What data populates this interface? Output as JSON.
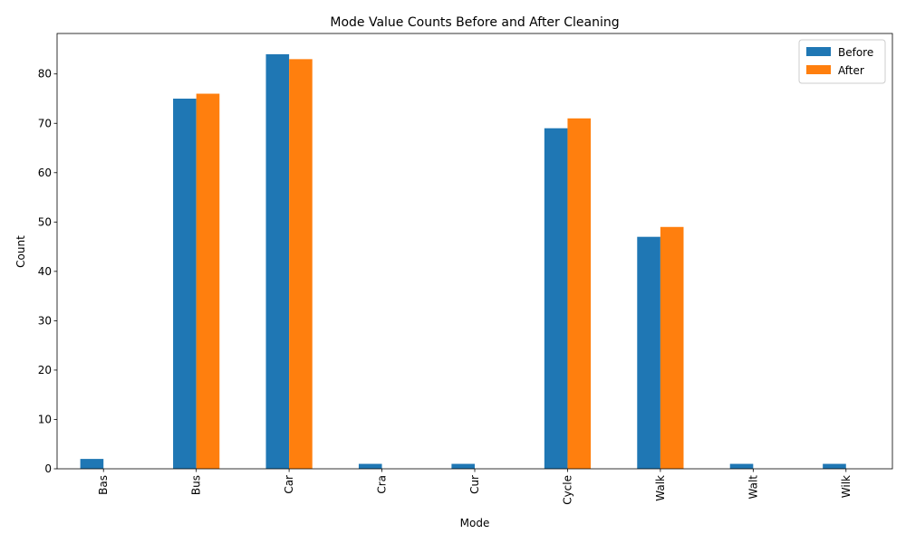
{
  "chart_data": {
    "type": "bar",
    "title": "Mode Value Counts Before and After Cleaning",
    "xlabel": "Mode",
    "ylabel": "Count",
    "categories": [
      "Bas",
      "Bus",
      "Car",
      "Cra",
      "Cur",
      "Cycle",
      "Walk",
      "Walt",
      "Wilk"
    ],
    "series": [
      {
        "name": "Before",
        "color": "#1f77b4",
        "values": [
          2,
          75,
          84,
          1,
          1,
          69,
          47,
          1,
          1
        ]
      },
      {
        "name": "After",
        "color": "#ff7f0e",
        "values": [
          0,
          76,
          83,
          0,
          0,
          71,
          49,
          0,
          0
        ]
      }
    ],
    "ylim": [
      0,
      88.2
    ],
    "yticks": [
      0,
      10,
      20,
      30,
      40,
      50,
      60,
      70,
      80
    ],
    "grid": false,
    "legend_position": "top-right"
  }
}
